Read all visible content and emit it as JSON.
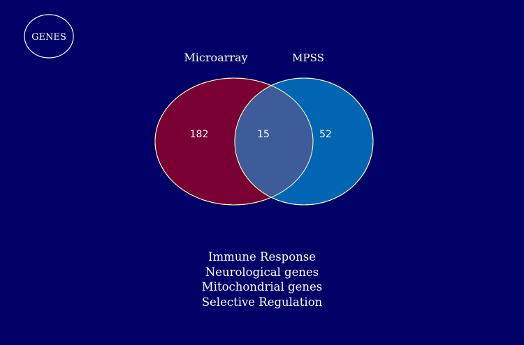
{
  "badge": {
    "label": "GENES"
  },
  "sets": {
    "left": {
      "label": "Microarray",
      "count": "182",
      "color": "#7a0033"
    },
    "right": {
      "label": "MPSS",
      "count": "52",
      "color": "#0066b3"
    },
    "overlap": {
      "count": "15",
      "color": "#3d5c99"
    }
  },
  "categories": [
    "Immune Response",
    "Neurological genes",
    "Mitochondrial genes",
    "Selective Regulation"
  ],
  "colors": {
    "background": "#000066",
    "outline": "#ffffcc"
  }
}
